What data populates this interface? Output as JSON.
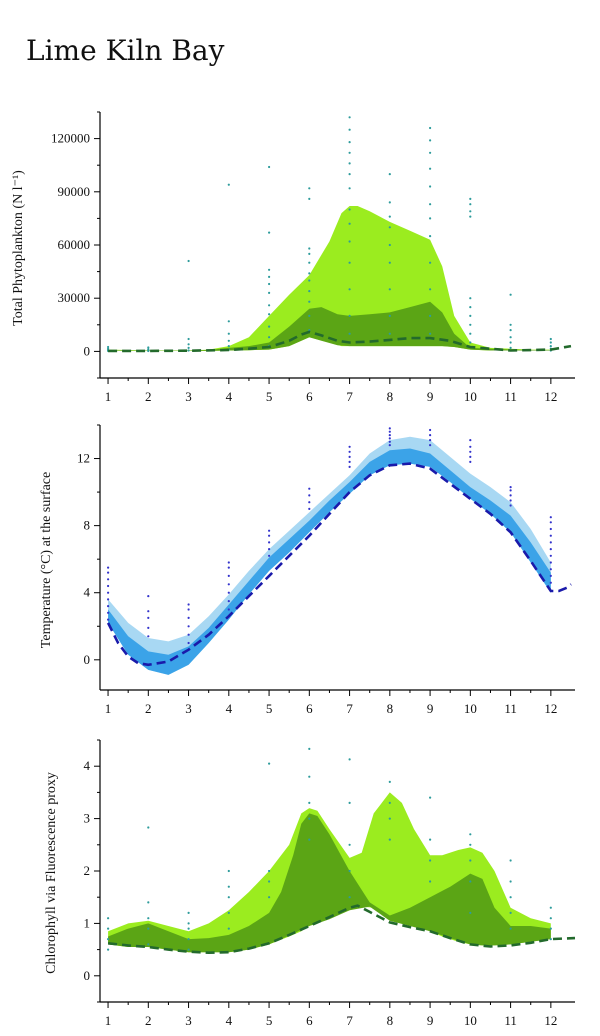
{
  "page": {
    "title": "Lime Kiln Bay"
  },
  "colors": {
    "light_green": "#9BEC1F",
    "dark_green": "#5BA515",
    "median_green": "#236A2C",
    "light_blue": "#A8D8F3",
    "mid_blue": "#3BA3E8",
    "median_blue": "#1A1AAA",
    "obs_green": "#2E9C9C",
    "obs_blue": "#3333CC"
  },
  "chart_data": [
    {
      "type": "area",
      "ylabel": "Total Phytoplankton (N l⁻¹)",
      "x_ticks": [
        1,
        2,
        3,
        4,
        5,
        6,
        7,
        8,
        9,
        10,
        11,
        12
      ],
      "y_ticks": [
        0,
        30000,
        60000,
        90000,
        120000
      ],
      "y_tick_labels": [
        "0",
        "30000",
        "60000",
        "90000",
        "120000"
      ],
      "xlim": [
        0.8,
        12.6
      ],
      "ylim": [
        -15000,
        135000
      ],
      "outer_band": {
        "x": [
          1,
          2,
          3,
          3.5,
          4,
          4.5,
          5,
          5.5,
          6,
          6.5,
          6.8,
          7,
          7.2,
          7.5,
          8,
          8.5,
          9,
          9.3,
          9.6,
          10,
          10.5,
          11,
          11.5,
          12
        ],
        "upper": [
          1000,
          500,
          500,
          1000,
          3000,
          8000,
          20000,
          32000,
          43000,
          62000,
          78000,
          82000,
          82000,
          79000,
          73000,
          68000,
          63000,
          48000,
          20000,
          5000,
          2000,
          1500,
          1000,
          1000
        ],
        "lower": [
          500,
          200,
          200,
          300,
          500,
          700,
          1000,
          3000,
          8000,
          5000,
          3000,
          3000,
          3000,
          3000,
          3000,
          3000,
          3000,
          3000,
          2500,
          1000,
          500,
          500,
          500,
          500
        ]
      },
      "inner_band": {
        "x": [
          1,
          2,
          3,
          3.5,
          4,
          4.5,
          5,
          5.5,
          6,
          6.3,
          6.7,
          7,
          7.5,
          8,
          8.5,
          9,
          9.3,
          9.6,
          10,
          10.5,
          11,
          11.5,
          12
        ],
        "upper": [
          800,
          400,
          400,
          800,
          2000,
          3000,
          5000,
          14000,
          24000,
          25000,
          21000,
          20000,
          21000,
          22000,
          25000,
          28000,
          22000,
          10000,
          2000,
          1500,
          1000,
          800,
          800
        ],
        "lower": [
          500,
          200,
          200,
          300,
          500,
          700,
          1000,
          3000,
          8000,
          6000,
          3500,
          3000,
          3000,
          3000,
          3000,
          3000,
          3000,
          2500,
          1000,
          500,
          500,
          500,
          500
        ]
      },
      "median": {
        "x": [
          1,
          2,
          3,
          4,
          4.5,
          5,
          5.5,
          5.8,
          6,
          6.3,
          6.7,
          7,
          7.5,
          8,
          8.5,
          9,
          9.5,
          10,
          11,
          12,
          12.5
        ],
        "y": [
          300,
          300,
          400,
          800,
          1500,
          2500,
          6000,
          9500,
          11000,
          9000,
          6000,
          5000,
          5500,
          6500,
          7500,
          7500,
          6000,
          2500,
          500,
          1000,
          3000
        ]
      },
      "observations": [
        {
          "x": 1,
          "y": [
            300,
            800,
            1500,
            2500
          ]
        },
        {
          "x": 2,
          "y": [
            200,
            600,
            1200,
            2200
          ]
        },
        {
          "x": 3,
          "y": [
            500,
            2000,
            4000,
            7000,
            51000
          ]
        },
        {
          "x": 4,
          "y": [
            1000,
            3000,
            6000,
            10000,
            17000,
            94000
          ]
        },
        {
          "x": 5,
          "y": [
            3000,
            8000,
            14000,
            21000,
            26000,
            33000,
            38000,
            42000,
            46000,
            67000,
            104000
          ]
        },
        {
          "x": 6,
          "y": [
            12000,
            20000,
            28000,
            34000,
            40000,
            44000,
            50000,
            55000,
            58000,
            86000,
            92000
          ]
        },
        {
          "x": 7,
          "y": [
            10000,
            20000,
            35000,
            50000,
            62000,
            72000,
            80000,
            92000,
            100000,
            106000,
            112000,
            118000,
            125000,
            132000
          ]
        },
        {
          "x": 8,
          "y": [
            10000,
            20000,
            35000,
            50000,
            60000,
            70000,
            76000,
            84000,
            100000
          ]
        },
        {
          "x": 9,
          "y": [
            10000,
            20000,
            35000,
            50000,
            65000,
            75000,
            83000,
            93000,
            103000,
            112000,
            119000,
            126000
          ]
        },
        {
          "x": 10,
          "y": [
            5000,
            10000,
            15000,
            20000,
            25000,
            30000,
            76000,
            79000,
            83000,
            86000
          ]
        },
        {
          "x": 11,
          "y": [
            2000,
            5000,
            8000,
            12000,
            15000,
            32000
          ]
        },
        {
          "x": 12,
          "y": [
            500,
            1500,
            3000,
            5000,
            7000
          ]
        }
      ]
    },
    {
      "type": "area",
      "ylabel": "Temperature (°C) at the surface",
      "x_ticks": [
        1,
        2,
        3,
        4,
        5,
        6,
        7,
        8,
        9,
        10,
        11,
        12
      ],
      "y_ticks": [
        0,
        4,
        8,
        12
      ],
      "y_tick_labels": [
        "0",
        "4",
        "8",
        "12"
      ],
      "xlim": [
        0.8,
        12.6
      ],
      "ylim": [
        -1.8,
        14
      ],
      "outer_band": {
        "x": [
          1,
          1.5,
          2,
          2.5,
          3,
          3.5,
          4,
          4.5,
          5,
          5.5,
          6,
          6.5,
          7,
          7.5,
          8,
          8.5,
          9,
          9.5,
          10,
          10.5,
          11,
          11.5,
          12
        ],
        "upper": [
          3.6,
          2.2,
          1.3,
          1.1,
          1.5,
          2.6,
          3.9,
          5.3,
          6.6,
          7.7,
          8.8,
          9.9,
          11.0,
          12.3,
          13.1,
          13.3,
          13.1,
          12.1,
          11.1,
          10.3,
          9.4,
          7.8,
          5.8
        ],
        "lower": [
          2.2,
          0.3,
          -0.6,
          -0.9,
          -0.3,
          1.0,
          2.4,
          3.9,
          5.3,
          6.4,
          7.6,
          8.8,
          9.9,
          11.0,
          11.6,
          11.7,
          11.5,
          10.6,
          9.6,
          8.7,
          7.6,
          5.8,
          4.0
        ]
      },
      "inner_band": {
        "x": [
          1,
          1.5,
          2,
          2.5,
          3,
          3.5,
          4,
          4.5,
          5,
          5.5,
          6,
          6.5,
          7,
          7.5,
          8,
          8.5,
          9,
          9.5,
          10,
          10.5,
          11,
          11.5,
          12
        ],
        "upper": [
          3.0,
          1.4,
          0.5,
          0.3,
          0.8,
          1.9,
          3.3,
          4.7,
          6.1,
          7.2,
          8.3,
          9.5,
          10.6,
          11.8,
          12.5,
          12.6,
          12.3,
          11.3,
          10.3,
          9.5,
          8.6,
          7.0,
          5.2
        ],
        "lower": [
          2.2,
          0.3,
          -0.6,
          -0.9,
          -0.3,
          1.0,
          2.4,
          3.9,
          5.3,
          6.4,
          7.6,
          8.8,
          9.9,
          11.0,
          11.6,
          11.7,
          11.5,
          10.6,
          9.6,
          8.7,
          7.6,
          5.8,
          4.0
        ]
      },
      "median": {
        "x": [
          1,
          1.25,
          1.5,
          1.75,
          2,
          2.5,
          3,
          3.5,
          4,
          4.5,
          5,
          5.5,
          6,
          6.5,
          7,
          7.5,
          8,
          8.5,
          9,
          9.5,
          10,
          10.5,
          11,
          11.5,
          12,
          12.2,
          12.4,
          12.5
        ],
        "y": [
          2.2,
          1.0,
          0.2,
          -0.2,
          -0.3,
          -0.1,
          0.6,
          1.5,
          2.6,
          3.8,
          5.0,
          6.2,
          7.4,
          8.7,
          10.0,
          11.0,
          11.6,
          11.7,
          11.4,
          10.5,
          9.6,
          8.7,
          7.6,
          5.9,
          4.1,
          4.1,
          4.3,
          4.5
        ]
      },
      "observations": [
        {
          "x": 1,
          "y": [
            2.4,
            2.8,
            3.2,
            3.6,
            4.0,
            4.4,
            4.8,
            5.2,
            5.5
          ]
        },
        {
          "x": 2,
          "y": [
            1.4,
            1.9,
            2.5,
            2.9,
            3.8
          ]
        },
        {
          "x": 3,
          "y": [
            1.0,
            1.5,
            2.0,
            2.5,
            3.0,
            3.3
          ]
        },
        {
          "x": 4,
          "y": [
            3.0,
            3.5,
            4.0,
            4.5,
            5.0,
            5.5,
            5.8
          ]
        },
        {
          "x": 5,
          "y": [
            6.2,
            6.6,
            7.0,
            7.4,
            7.7
          ]
        },
        {
          "x": 6,
          "y": [
            9.0,
            9.4,
            9.8,
            10.2
          ]
        },
        {
          "x": 7,
          "y": [
            11.5,
            11.8,
            12.1,
            12.4,
            12.7
          ]
        },
        {
          "x": 8,
          "y": [
            12.8,
            13.0,
            13.2,
            13.4,
            13.6,
            13.8
          ]
        },
        {
          "x": 9,
          "y": [
            12.8,
            13.1,
            13.4,
            13.7
          ]
        },
        {
          "x": 10,
          "y": [
            11.8,
            12.1,
            12.4,
            12.7,
            13.1
          ]
        },
        {
          "x": 11,
          "y": [
            9.2,
            9.5,
            9.8,
            10.1,
            10.3
          ]
        },
        {
          "x": 12,
          "y": [
            4.6,
            5.0,
            5.4,
            5.8,
            6.2,
            6.6,
            7.0,
            7.4,
            7.8,
            8.2,
            8.5
          ]
        }
      ]
    },
    {
      "type": "area",
      "ylabel": "Chlorophyll via Fluorescence proxy",
      "x_ticks": [
        1,
        2,
        3,
        4,
        5,
        6,
        7,
        8,
        9,
        10,
        11,
        12
      ],
      "y_ticks": [
        0,
        1,
        2,
        3,
        4
      ],
      "y_tick_labels": [
        "0",
        "1",
        "2",
        "3",
        "4"
      ],
      "xlim": [
        0.8,
        12.6
      ],
      "ylim": [
        -0.5,
        4.5
      ],
      "outer_band": {
        "x": [
          1,
          1.5,
          2,
          2.5,
          3,
          3.5,
          4,
          4.5,
          5,
          5.5,
          5.8,
          6,
          6.2,
          6.5,
          7,
          7.3,
          7.6,
          8,
          8.3,
          8.6,
          9,
          9.3,
          9.7,
          10,
          10.3,
          10.6,
          11,
          11.5,
          12
        ],
        "upper": [
          0.85,
          1.0,
          1.05,
          0.95,
          0.85,
          1.0,
          1.25,
          1.6,
          2.0,
          2.5,
          3.1,
          3.2,
          3.15,
          2.8,
          2.25,
          2.35,
          3.1,
          3.5,
          3.3,
          2.8,
          2.3,
          2.3,
          2.4,
          2.45,
          2.35,
          2.0,
          1.3,
          1.1,
          1.0
        ],
        "lower": [
          0.6,
          0.55,
          0.55,
          0.5,
          0.45,
          0.45,
          0.45,
          0.5,
          0.6,
          0.75,
          0.85,
          0.95,
          1.02,
          1.1,
          1.25,
          1.32,
          1.3,
          1.05,
          1.0,
          0.95,
          0.85,
          0.75,
          0.65,
          0.6,
          0.58,
          0.58,
          0.6,
          0.65,
          0.7
        ]
      },
      "inner_band": {
        "x": [
          1,
          1.5,
          2,
          2.5,
          3,
          3.5,
          4,
          4.5,
          5,
          5.3,
          5.6,
          5.8,
          6,
          6.2,
          6.5,
          7,
          7.5,
          8,
          8.5,
          9,
          9.5,
          10,
          10.3,
          10.6,
          11,
          11.5,
          12
        ],
        "upper": [
          0.75,
          0.9,
          1.0,
          0.85,
          0.7,
          0.72,
          0.78,
          0.95,
          1.2,
          1.6,
          2.3,
          2.9,
          3.1,
          3.05,
          2.7,
          2.0,
          1.4,
          1.15,
          1.3,
          1.5,
          1.7,
          1.95,
          1.85,
          1.3,
          0.95,
          0.95,
          0.9
        ],
        "lower": [
          0.6,
          0.55,
          0.55,
          0.5,
          0.45,
          0.45,
          0.45,
          0.5,
          0.6,
          0.7,
          0.8,
          0.88,
          0.95,
          1.0,
          1.08,
          1.25,
          1.32,
          1.05,
          0.95,
          0.85,
          0.72,
          0.6,
          0.58,
          0.58,
          0.6,
          0.65,
          0.7
        ]
      },
      "median": {
        "x": [
          1,
          1.5,
          2,
          2.5,
          3,
          3.5,
          4,
          4.5,
          5,
          5.5,
          6,
          6.5,
          7,
          7.2,
          7.5,
          8,
          8.5,
          9,
          9.5,
          10,
          10.5,
          11,
          11.5,
          12,
          12.6
        ],
        "y": [
          0.62,
          0.58,
          0.55,
          0.5,
          0.46,
          0.44,
          0.45,
          0.52,
          0.62,
          0.78,
          0.95,
          1.12,
          1.3,
          1.34,
          1.22,
          1.02,
          0.93,
          0.85,
          0.72,
          0.6,
          0.56,
          0.58,
          0.63,
          0.7,
          0.72
        ]
      },
      "observations": [
        {
          "x": 1,
          "y": [
            0.5,
            0.7,
            0.9,
            1.1
          ]
        },
        {
          "x": 2,
          "y": [
            0.6,
            0.9,
            1.1,
            1.4,
            2.83
          ]
        },
        {
          "x": 3,
          "y": [
            0.5,
            0.7,
            0.9,
            1.0,
            1.2
          ]
        },
        {
          "x": 4,
          "y": [
            0.9,
            1.2,
            1.5,
            1.7,
            2.0
          ]
        },
        {
          "x": 5,
          "y": [
            1.5,
            1.8,
            2.0,
            4.05
          ]
        },
        {
          "x": 6,
          "y": [
            2.6,
            3.0,
            3.3,
            3.8,
            4.33
          ]
        },
        {
          "x": 7,
          "y": [
            1.5,
            2.0,
            2.5,
            3.3,
            4.13
          ]
        },
        {
          "x": 8,
          "y": [
            2.6,
            3.0,
            3.3,
            3.7
          ]
        },
        {
          "x": 9,
          "y": [
            1.8,
            2.2,
            2.6,
            3.4
          ]
        },
        {
          "x": 10,
          "y": [
            1.2,
            1.8,
            2.2,
            2.5,
            2.7
          ]
        },
        {
          "x": 11,
          "y": [
            0.9,
            1.2,
            1.5,
            1.8,
            2.2
          ]
        },
        {
          "x": 12,
          "y": [
            0.7,
            0.9,
            1.1,
            1.3
          ]
        }
      ]
    }
  ]
}
